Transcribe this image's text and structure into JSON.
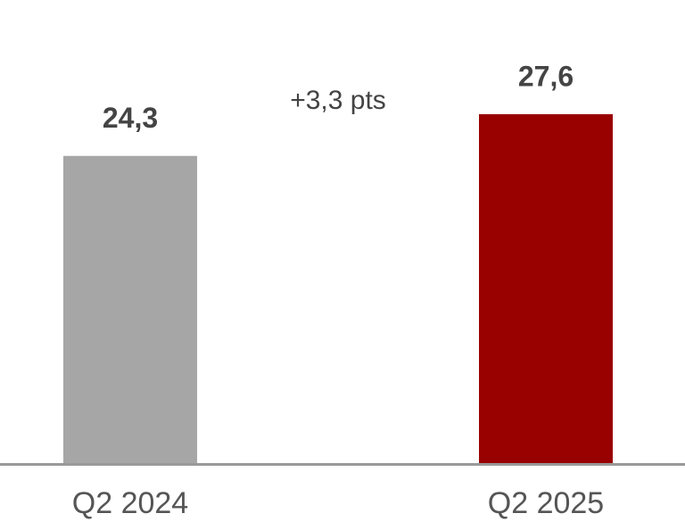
{
  "chart_data": {
    "type": "bar",
    "categories": [
      "Q2 2024",
      "Q2 2025"
    ],
    "values": [
      24.3,
      27.6
    ],
    "value_labels": [
      "24,3",
      "27,6"
    ],
    "colors": [
      "#a6a6a6",
      "#990000"
    ],
    "annotation": "+3,3 pts"
  }
}
